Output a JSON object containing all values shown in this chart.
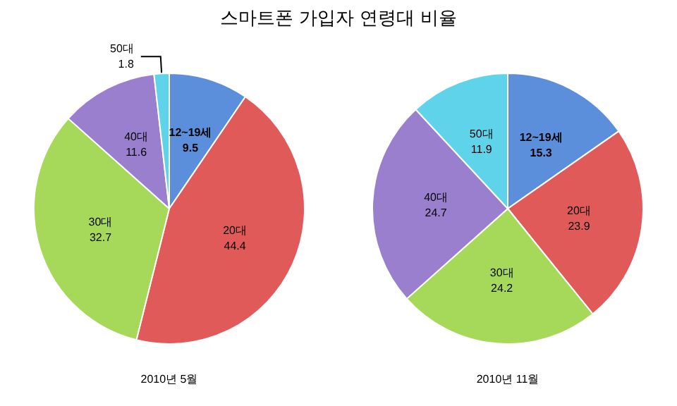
{
  "chart_data": [
    {
      "type": "pie",
      "title": "스마트폰 가입자 연령대 비율",
      "xlabel": "2010년 5월",
      "categories": [
        "12~19세",
        "20대",
        "30대",
        "40대",
        "50대"
      ],
      "values": [
        9.5,
        44.4,
        32.7,
        11.6,
        1.8
      ],
      "colors": [
        "#5b8fdc",
        "#e05a5a",
        "#a6d95a",
        "#9a7fcf",
        "#5fd3ea"
      ],
      "data_labels": true,
      "legend": false
    },
    {
      "type": "pie",
      "xlabel": "2010년 11월",
      "categories": [
        "12~19세",
        "20대",
        "30대",
        "40대",
        "50대"
      ],
      "values": [
        15.3,
        23.9,
        24.2,
        24.7,
        11.9
      ],
      "colors": [
        "#5b8fdc",
        "#e05a5a",
        "#a6d95a",
        "#9a7fcf",
        "#5fd3ea"
      ],
      "data_labels": true,
      "legend": false
    }
  ]
}
